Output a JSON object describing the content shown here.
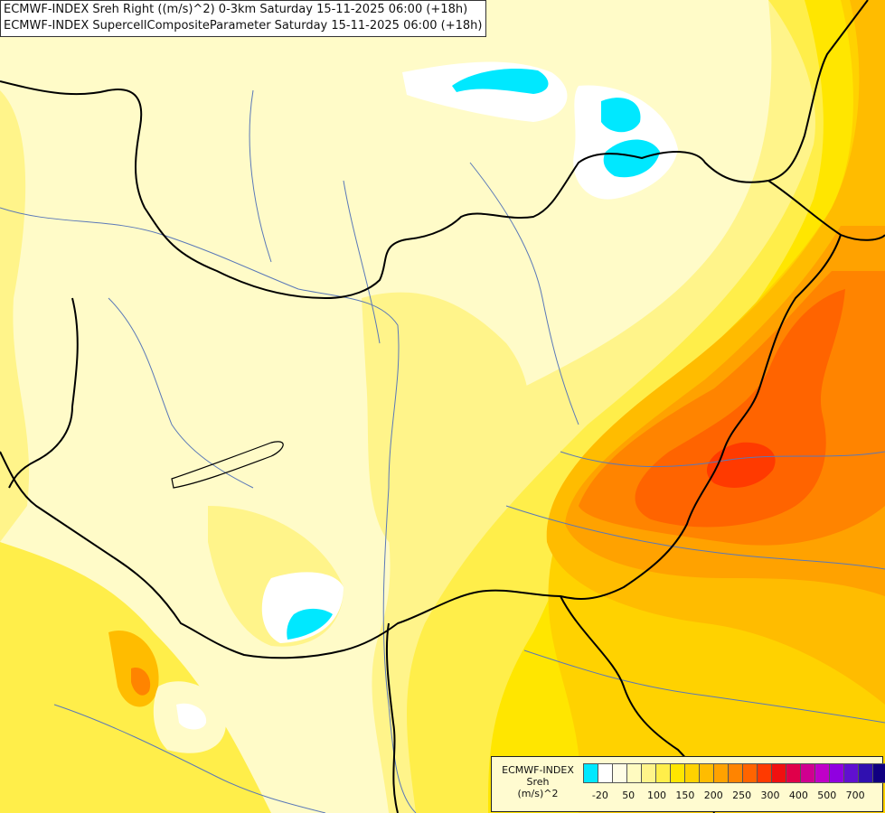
{
  "title": {
    "line1": "ECMWF-INDEX Sreh Right ((m/s)^2) 0-3km Saturday 15-11-2025 06:00 (+18h)",
    "line2": "ECMWF-INDEX SupercellCompositeParameter Saturday 15-11-2025 06:00 (+18h)"
  },
  "legend": {
    "line1": "ECMWF-INDEX",
    "line2": "Sreh",
    "line3": "(m/s)^2",
    "colors": [
      "#00e8ff",
      "#ffffff",
      "#fffde6",
      "#fffbc0",
      "#fff48a",
      "#ffee4a",
      "#ffe600",
      "#ffd200",
      "#ffbc00",
      "#ffa200",
      "#ff8400",
      "#ff6400",
      "#ff3a00",
      "#f01010",
      "#e0004a",
      "#d00090",
      "#c000c8",
      "#9000e0",
      "#6010d0",
      "#3010b0",
      "#100080"
    ],
    "ticks": [
      {
        "label": "-20",
        "index": 0.5
      },
      {
        "label": "50",
        "index": 2.5
      },
      {
        "label": "100",
        "index": 4.5
      },
      {
        "label": "150",
        "index": 6.5
      },
      {
        "label": "200",
        "index": 8.5
      },
      {
        "label": "250",
        "index": 10.5
      },
      {
        "label": "300",
        "index": 12.5
      },
      {
        "label": "400",
        "index": 14.5
      },
      {
        "label": "500",
        "index": 16.5
      },
      {
        "label": "700",
        "index": 18.5
      }
    ]
  }
}
